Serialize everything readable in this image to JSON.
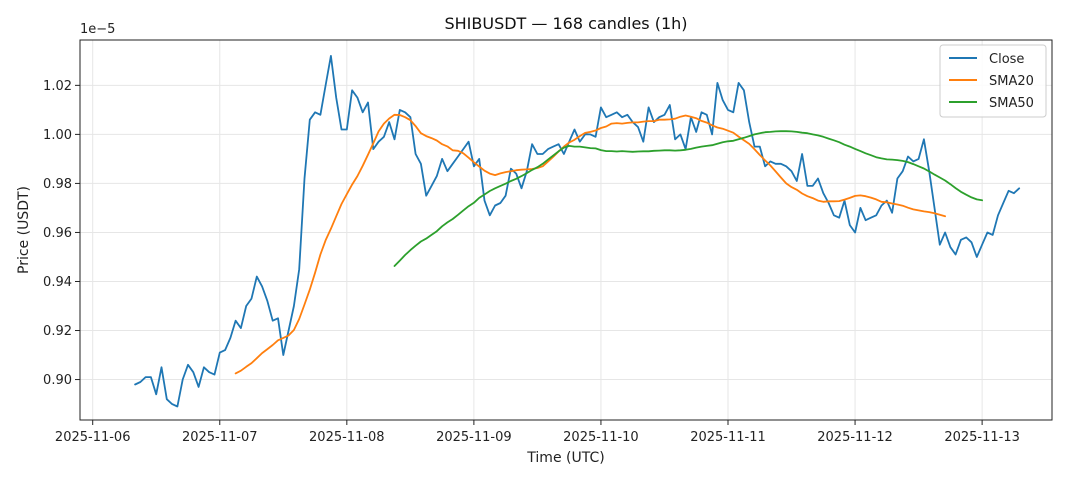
{
  "chart_data": {
    "type": "line",
    "title": "SHIBUSDT — 168 candles (1h)",
    "xlabel": "Time (UTC)",
    "ylabel": "Price (USDT)",
    "y_multiplier_label": "1e−5",
    "x_ticks": [
      "2025-11-06",
      "2025-11-07",
      "2025-11-08",
      "2025-11-09",
      "2025-11-10",
      "2025-11-11",
      "2025-11-12",
      "2025-11-13"
    ],
    "y_ticks": [
      "0.90",
      "0.92",
      "0.94",
      "0.96",
      "0.98",
      "1.00",
      "1.02"
    ],
    "y_tick_values": [
      0.9,
      0.92,
      0.94,
      0.96,
      0.98,
      1.0,
      1.02
    ],
    "xlim_days": [
      -0.1,
      7.55
    ],
    "ylim": [
      0.8835,
      1.0385
    ],
    "x_start": "2025-11-06 08:00",
    "x_step_hours": 1,
    "grid": true,
    "legend_position": "top-right",
    "series": [
      {
        "name": "Close",
        "color": "#1f77b4",
        "start_index": 0,
        "values": [
          0.898,
          0.899,
          0.901,
          0.901,
          0.894,
          0.905,
          0.892,
          0.89,
          0.889,
          0.9,
          0.906,
          0.903,
          0.897,
          0.905,
          0.903,
          0.902,
          0.911,
          0.912,
          0.917,
          0.924,
          0.921,
          0.93,
          0.933,
          0.942,
          0.938,
          0.932,
          0.924,
          0.925,
          0.91,
          0.92,
          0.93,
          0.945,
          0.982,
          1.006,
          1.009,
          1.008,
          1.02,
          1.032,
          1.015,
          1.002,
          1.002,
          1.018,
          1.015,
          1.009,
          1.013,
          0.994,
          0.997,
          0.999,
          1.005,
          0.998,
          1.01,
          1.009,
          1.007,
          0.992,
          0.988,
          0.975,
          0.979,
          0.983,
          0.99,
          0.985,
          0.988,
          0.991,
          0.994,
          0.997,
          0.987,
          0.99,
          0.973,
          0.967,
          0.971,
          0.972,
          0.975,
          0.986,
          0.984,
          0.978,
          0.985,
          0.996,
          0.992,
          0.992,
          0.994,
          0.995,
          0.996,
          0.992,
          0.997,
          1.002,
          0.997,
          1.0,
          1.0,
          0.999,
          1.011,
          1.007,
          1.008,
          1.009,
          1.007,
          1.008,
          1.005,
          1.003,
          0.997,
          1.011,
          1.005,
          1.007,
          1.008,
          1.012,
          0.998,
          1.0,
          0.994,
          1.007,
          1.001,
          1.009,
          1.008,
          1.0,
          1.021,
          1.014,
          1.01,
          1.009,
          1.021,
          1.018,
          1.005,
          0.995,
          0.995,
          0.987,
          0.989,
          0.988,
          0.988,
          0.987,
          0.985,
          0.981,
          0.992,
          0.979,
          0.979,
          0.982,
          0.976,
          0.972,
          0.967,
          0.966,
          0.973,
          0.963,
          0.96,
          0.97,
          0.965,
          0.966,
          0.967,
          0.971,
          0.973,
          0.968,
          0.982,
          0.985,
          0.991,
          0.989,
          0.99,
          0.998,
          0.985,
          0.97,
          0.955,
          0.96,
          0.954,
          0.951,
          0.957,
          0.958,
          0.956,
          0.95,
          0.955,
          0.96,
          0.959,
          0.967,
          0.972,
          0.977,
          0.976,
          0.978
        ]
      },
      {
        "name": "SMA20",
        "color": "#ff7f0e",
        "start_index": 19,
        "values": [
          0.9025,
          0.9036,
          0.9052,
          0.9067,
          0.9087,
          0.9108,
          0.9124,
          0.9141,
          0.916,
          0.917,
          0.918,
          0.9202,
          0.9247,
          0.9306,
          0.9367,
          0.9436,
          0.951,
          0.9568,
          0.9615,
          0.9666,
          0.9716,
          0.9756,
          0.9795,
          0.983,
          0.9872,
          0.9917,
          0.9964,
          1.0012,
          1.0044,
          1.0065,
          1.008,
          1.0079,
          1.007,
          1.0058,
          1.0034,
          1.0005,
          0.9993,
          0.9985,
          0.9975,
          0.996,
          0.9951,
          0.9935,
          0.9933,
          0.9923,
          0.9905,
          0.9886,
          0.9869,
          0.9852,
          0.984,
          0.9834,
          0.9841,
          0.9846,
          0.985,
          0.9854,
          0.9856,
          0.9857,
          0.9859,
          0.9863,
          0.987,
          0.9889,
          0.9909,
          0.993,
          0.995,
          0.9967,
          0.9978,
          0.9993,
          1.0006,
          1.001,
          1.0016,
          1.0026,
          1.0032,
          1.0044,
          1.0046,
          1.0044,
          1.0047,
          1.0049,
          1.0049,
          1.0052,
          1.0054,
          1.0054,
          1.006,
          1.006,
          1.0061,
          1.0064,
          1.0072,
          1.0077,
          1.0072,
          1.0066,
          1.0055,
          1.0048,
          1.0037,
          1.0028,
          1.0023,
          1.0015,
          1.0007,
          0.9991,
          0.9976,
          0.9961,
          0.9939,
          0.9916,
          0.9894,
          0.9873,
          0.9849,
          0.9824,
          0.98,
          0.9785,
          0.9774,
          0.9759,
          0.9748,
          0.974,
          0.973,
          0.9725,
          0.9727,
          0.9727,
          0.9728,
          0.9734,
          0.9741,
          0.9749,
          0.9751,
          0.9748,
          0.9742,
          0.9735,
          0.9725,
          0.9723,
          0.9718,
          0.9714,
          0.9709,
          0.9701,
          0.9694,
          0.969,
          0.9686,
          0.9683,
          0.9678,
          0.9672,
          0.9666
        ]
      },
      {
        "name": "SMA50",
        "color": "#2ca02c",
        "start_index": 49,
        "values": [
          0.9463,
          0.9485,
          0.9508,
          0.9528,
          0.9546,
          0.9563,
          0.9575,
          0.959,
          0.9605,
          0.9625,
          0.9641,
          0.9655,
          0.9672,
          0.969,
          0.9707,
          0.9721,
          0.9741,
          0.9755,
          0.9769,
          0.978,
          0.979,
          0.9799,
          0.981,
          0.9819,
          0.983,
          0.9842,
          0.9855,
          0.9866,
          0.988,
          0.9897,
          0.9914,
          0.9931,
          0.9946,
          0.9953,
          0.995,
          0.995,
          0.9947,
          0.9944,
          0.9943,
          0.9936,
          0.9932,
          0.9932,
          0.993,
          0.9932,
          0.993,
          0.9929,
          0.993,
          0.9931,
          0.9931,
          0.9933,
          0.9934,
          0.9935,
          0.9935,
          0.9934,
          0.9935,
          0.9937,
          0.9941,
          0.9946,
          0.995,
          0.9953,
          0.9956,
          0.9962,
          0.9968,
          0.9972,
          0.9974,
          0.998,
          0.9986,
          0.9993,
          1.0,
          1.0005,
          1.0009,
          1.001,
          1.0012,
          1.0013,
          1.0013,
          1.0012,
          1.001,
          1.0007,
          1.0005,
          1.0,
          0.9996,
          0.999,
          0.9983,
          0.9976,
          0.9968,
          0.9958,
          0.995,
          0.9941,
          0.9932,
          0.9923,
          0.9915,
          0.9907,
          0.9902,
          0.9898,
          0.9897,
          0.9895,
          0.9892,
          0.9887,
          0.9879,
          0.987,
          0.9861,
          0.9849,
          0.9836,
          0.9824,
          0.9812,
          0.9797,
          0.9781,
          0.9766,
          0.9754,
          0.9743,
          0.9735,
          0.9731
        ]
      }
    ]
  }
}
